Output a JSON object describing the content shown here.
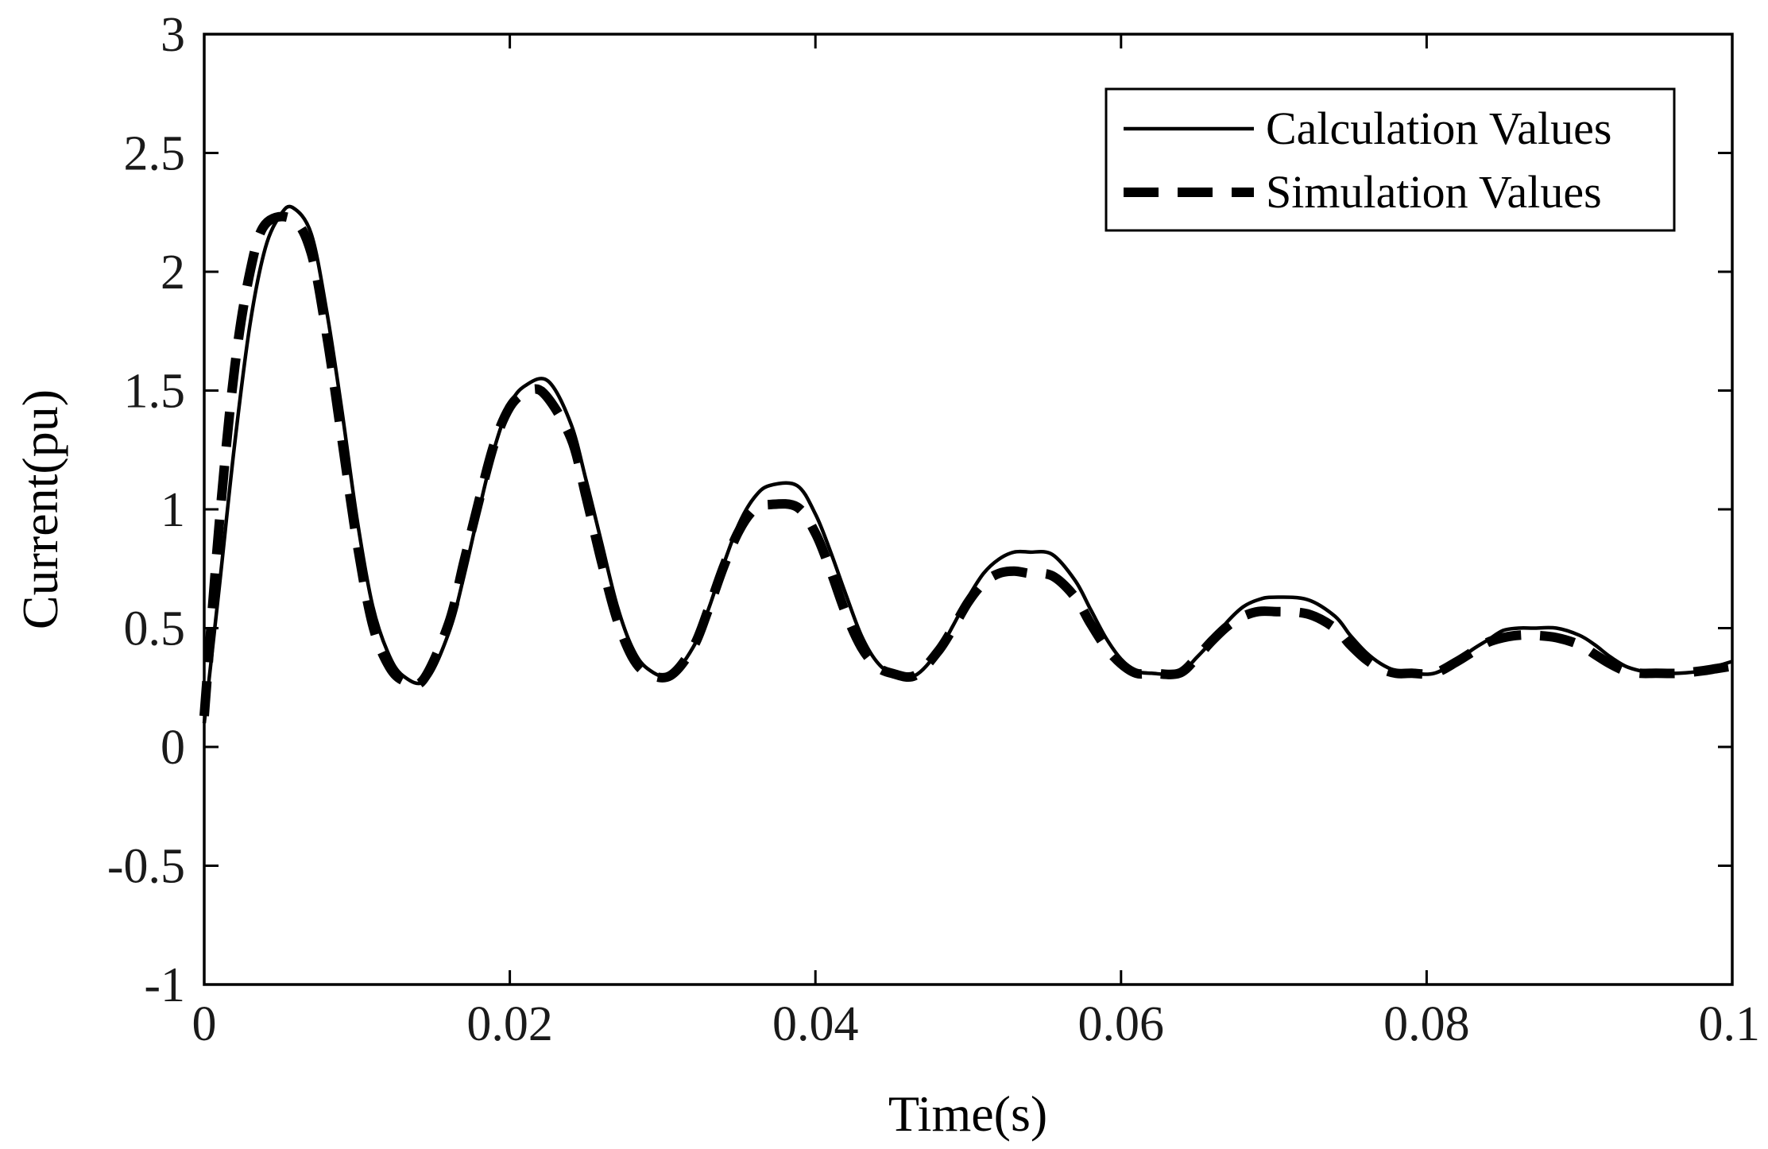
{
  "chart_data": {
    "type": "line",
    "title": "",
    "xlabel": "Time(s)",
    "ylabel": "Current(pu)",
    "xlim": [
      0,
      0.1
    ],
    "ylim": [
      -1,
      3
    ],
    "xticks": [
      0,
      0.02,
      0.04,
      0.06,
      0.08,
      0.1
    ],
    "xtick_labels": [
      "0",
      "0.02",
      "0.04",
      "0.06",
      "0.08",
      "0.1"
    ],
    "yticks": [
      -1,
      -0.5,
      0,
      0.5,
      1,
      1.5,
      2,
      2.5,
      3
    ],
    "ytick_labels": [
      "-1",
      "-0.5",
      "0",
      "0.5",
      "1",
      "1.5",
      "2",
      "2.5",
      "3"
    ],
    "grid": false,
    "legend_position": "top-right",
    "colors": {
      "line": "#000000",
      "axis": "#000000",
      "background": "#ffffff"
    },
    "series": [
      {
        "name": "Calculation Values",
        "style": "solid",
        "x": [
          0,
          0.001,
          0.002,
          0.003,
          0.004,
          0.005,
          0.0058,
          0.007,
          0.008,
          0.009,
          0.01,
          0.011,
          0.012,
          0.013,
          0.0145,
          0.016,
          0.017,
          0.018,
          0.019,
          0.02,
          0.021,
          0.0225,
          0.024,
          0.025,
          0.026,
          0.027,
          0.028,
          0.029,
          0.0305,
          0.032,
          0.033,
          0.034,
          0.035,
          0.036,
          0.037,
          0.0388,
          0.04,
          0.041,
          0.042,
          0.043,
          0.044,
          0.045,
          0.0465,
          0.048,
          0.049,
          0.05,
          0.051,
          0.052,
          0.053,
          0.054,
          0.0555,
          0.057,
          0.058,
          0.059,
          0.06,
          0.061,
          0.062,
          0.0638,
          0.065,
          0.066,
          0.067,
          0.068,
          0.069,
          0.07,
          0.0722,
          0.074,
          0.075,
          0.076,
          0.077,
          0.078,
          0.079,
          0.0805,
          0.082,
          0.083,
          0.084,
          0.085,
          0.086,
          0.087,
          0.0885,
          0.09,
          0.091,
          0.092,
          0.093,
          0.094,
          0.095,
          0.0965,
          0.098,
          0.099,
          0.1
        ],
        "y": [
          0.1,
          0.68,
          1.28,
          1.78,
          2.1,
          2.24,
          2.27,
          2.16,
          1.84,
          1.42,
          0.96,
          0.6,
          0.4,
          0.3,
          0.28,
          0.48,
          0.72,
          1.0,
          1.26,
          1.44,
          1.52,
          1.54,
          1.36,
          1.12,
          0.86,
          0.6,
          0.42,
          0.33,
          0.3,
          0.42,
          0.58,
          0.77,
          0.94,
          1.05,
          1.1,
          1.1,
          0.98,
          0.82,
          0.64,
          0.47,
          0.36,
          0.31,
          0.3,
          0.4,
          0.51,
          0.63,
          0.73,
          0.79,
          0.82,
          0.82,
          0.81,
          0.7,
          0.58,
          0.46,
          0.37,
          0.32,
          0.31,
          0.31,
          0.38,
          0.45,
          0.53,
          0.59,
          0.62,
          0.63,
          0.62,
          0.55,
          0.47,
          0.4,
          0.35,
          0.32,
          0.31,
          0.31,
          0.36,
          0.41,
          0.45,
          0.49,
          0.5,
          0.5,
          0.5,
          0.47,
          0.43,
          0.38,
          0.34,
          0.32,
          0.31,
          0.31,
          0.32,
          0.34,
          0.36
        ]
      },
      {
        "name": "Simulation Values",
        "style": "dashed",
        "x": [
          0,
          0.001,
          0.002,
          0.003,
          0.004,
          0.0058,
          0.007,
          0.008,
          0.009,
          0.01,
          0.011,
          0.012,
          0.013,
          0.0143,
          0.016,
          0.017,
          0.018,
          0.019,
          0.02,
          0.021,
          0.0222,
          0.024,
          0.025,
          0.026,
          0.027,
          0.028,
          0.029,
          0.0305,
          0.032,
          0.033,
          0.034,
          0.035,
          0.036,
          0.037,
          0.0388,
          0.04,
          0.041,
          0.042,
          0.043,
          0.044,
          0.045,
          0.0465,
          0.048,
          0.049,
          0.05,
          0.051,
          0.052,
          0.053,
          0.054,
          0.0555,
          0.057,
          0.058,
          0.059,
          0.06,
          0.061,
          0.062,
          0.0638,
          0.065,
          0.066,
          0.067,
          0.068,
          0.069,
          0.07,
          0.0722,
          0.074,
          0.075,
          0.076,
          0.077,
          0.078,
          0.079,
          0.0805,
          0.082,
          0.083,
          0.084,
          0.085,
          0.086,
          0.087,
          0.0885,
          0.09,
          0.091,
          0.092,
          0.093,
          0.094,
          0.095,
          0.0965,
          0.098,
          0.099,
          0.1
        ],
        "y": [
          0.13,
          0.95,
          1.6,
          2.0,
          2.2,
          2.22,
          2.08,
          1.74,
          1.3,
          0.86,
          0.52,
          0.35,
          0.28,
          0.28,
          0.52,
          0.78,
          1.04,
          1.28,
          1.43,
          1.49,
          1.49,
          1.3,
          1.05,
          0.78,
          0.54,
          0.38,
          0.31,
          0.3,
          0.42,
          0.58,
          0.76,
          0.91,
          1.0,
          1.02,
          1.01,
          0.9,
          0.74,
          0.56,
          0.42,
          0.34,
          0.31,
          0.3,
          0.4,
          0.5,
          0.61,
          0.69,
          0.73,
          0.74,
          0.73,
          0.72,
          0.63,
          0.52,
          0.42,
          0.35,
          0.31,
          0.31,
          0.31,
          0.38,
          0.45,
          0.51,
          0.55,
          0.57,
          0.57,
          0.56,
          0.5,
          0.43,
          0.37,
          0.33,
          0.31,
          0.31,
          0.31,
          0.36,
          0.4,
          0.44,
          0.46,
          0.47,
          0.47,
          0.46,
          0.43,
          0.39,
          0.35,
          0.32,
          0.31,
          0.31,
          0.31,
          0.32,
          0.33,
          0.34
        ]
      }
    ]
  }
}
